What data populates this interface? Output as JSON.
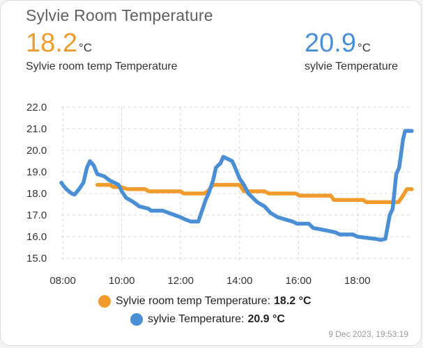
{
  "card": {
    "title": "Sylvie Room Temperature",
    "timestamp": "9 Dec 2023, 19:53:19"
  },
  "states": [
    {
      "value": "18.2",
      "unit": "°C",
      "name": "Sylvie room temp Temperature",
      "color": "#f09b2c"
    },
    {
      "value": "20.9",
      "unit": "°C",
      "name": "sylvie Temperature",
      "color": "#4a8fd6"
    }
  ],
  "legend": [
    {
      "label": "Sylvie room temp Temperature:",
      "value": "18.2 °C",
      "color": "#f09b2c"
    },
    {
      "label": "sylvie Temperature:",
      "value": "20.9 °C",
      "color": "#4a8fd6"
    }
  ],
  "chart_data": {
    "type": "line",
    "xlabel": "",
    "ylabel": "",
    "ylim": [
      15.0,
      22.0
    ],
    "yticks": [
      "22.0",
      "21.0",
      "20.0",
      "19.0",
      "18.0",
      "17.0",
      "16.0",
      "15.0"
    ],
    "xticks": [
      "08:00",
      "10:00",
      "12:00",
      "14:00",
      "16:00",
      "18:00"
    ],
    "xlim_hours": [
      7.95,
      19.85
    ],
    "grid": true,
    "series": [
      {
        "name": "Sylvie room temp Temperature",
        "color": "#f09b2c",
        "points": [
          [
            9.17,
            18.4
          ],
          [
            9.6,
            18.4
          ],
          [
            9.72,
            18.3
          ],
          [
            9.97,
            18.3
          ],
          [
            10.2,
            18.2
          ],
          [
            10.8,
            18.2
          ],
          [
            10.92,
            18.1
          ],
          [
            12.0,
            18.1
          ],
          [
            12.1,
            18.0
          ],
          [
            12.8,
            18.0
          ],
          [
            12.92,
            18.1
          ],
          [
            13.1,
            18.4
          ],
          [
            14.0,
            18.4
          ],
          [
            14.15,
            18.1
          ],
          [
            14.85,
            18.1
          ],
          [
            15.0,
            18.0
          ],
          [
            15.9,
            18.0
          ],
          [
            16.05,
            17.9
          ],
          [
            17.1,
            17.9
          ],
          [
            17.2,
            17.7
          ],
          [
            18.2,
            17.7
          ],
          [
            18.3,
            17.6
          ],
          [
            19.4,
            17.6
          ],
          [
            19.55,
            17.9
          ],
          [
            19.68,
            18.2
          ],
          [
            19.85,
            18.2
          ]
        ]
      },
      {
        "name": "sylvie Temperature",
        "color": "#4a8fd6",
        "points": [
          [
            7.95,
            18.5
          ],
          [
            8.0,
            18.4
          ],
          [
            8.12,
            18.2
          ],
          [
            8.3,
            18.0
          ],
          [
            8.4,
            17.95
          ],
          [
            8.55,
            18.2
          ],
          [
            8.7,
            18.5
          ],
          [
            8.82,
            19.2
          ],
          [
            8.92,
            19.5
          ],
          [
            9.05,
            19.3
          ],
          [
            9.17,
            18.9
          ],
          [
            9.4,
            18.8
          ],
          [
            9.6,
            18.6
          ],
          [
            9.9,
            18.4
          ],
          [
            10.0,
            18.1
          ],
          [
            10.15,
            17.8
          ],
          [
            10.4,
            17.6
          ],
          [
            10.6,
            17.4
          ],
          [
            10.9,
            17.3
          ],
          [
            11.0,
            17.2
          ],
          [
            11.4,
            17.2
          ],
          [
            11.6,
            17.1
          ],
          [
            11.8,
            17.0
          ],
          [
            12.0,
            16.9
          ],
          [
            12.15,
            16.8
          ],
          [
            12.35,
            16.7
          ],
          [
            12.6,
            16.7
          ],
          [
            12.75,
            17.3
          ],
          [
            12.85,
            17.7
          ],
          [
            12.95,
            18.0
          ],
          [
            13.1,
            18.6
          ],
          [
            13.2,
            19.2
          ],
          [
            13.35,
            19.4
          ],
          [
            13.45,
            19.7
          ],
          [
            13.6,
            19.6
          ],
          [
            13.75,
            19.5
          ],
          [
            13.85,
            19.2
          ],
          [
            14.0,
            18.7
          ],
          [
            14.15,
            18.4
          ],
          [
            14.3,
            18.0
          ],
          [
            14.45,
            17.8
          ],
          [
            14.6,
            17.6
          ],
          [
            14.85,
            17.4
          ],
          [
            15.05,
            17.1
          ],
          [
            15.3,
            16.9
          ],
          [
            15.55,
            16.8
          ],
          [
            15.8,
            16.7
          ],
          [
            15.95,
            16.6
          ],
          [
            16.35,
            16.6
          ],
          [
            16.5,
            16.4
          ],
          [
            16.9,
            16.3
          ],
          [
            17.25,
            16.2
          ],
          [
            17.4,
            16.1
          ],
          [
            17.85,
            16.1
          ],
          [
            18.0,
            16.0
          ],
          [
            18.3,
            15.95
          ],
          [
            18.6,
            15.9
          ],
          [
            18.8,
            15.85
          ],
          [
            18.95,
            15.9
          ],
          [
            19.1,
            17.0
          ],
          [
            19.2,
            17.3
          ],
          [
            19.32,
            18.9
          ],
          [
            19.42,
            19.2
          ],
          [
            19.55,
            20.5
          ],
          [
            19.62,
            20.9
          ],
          [
            19.85,
            20.9
          ]
        ]
      }
    ]
  }
}
